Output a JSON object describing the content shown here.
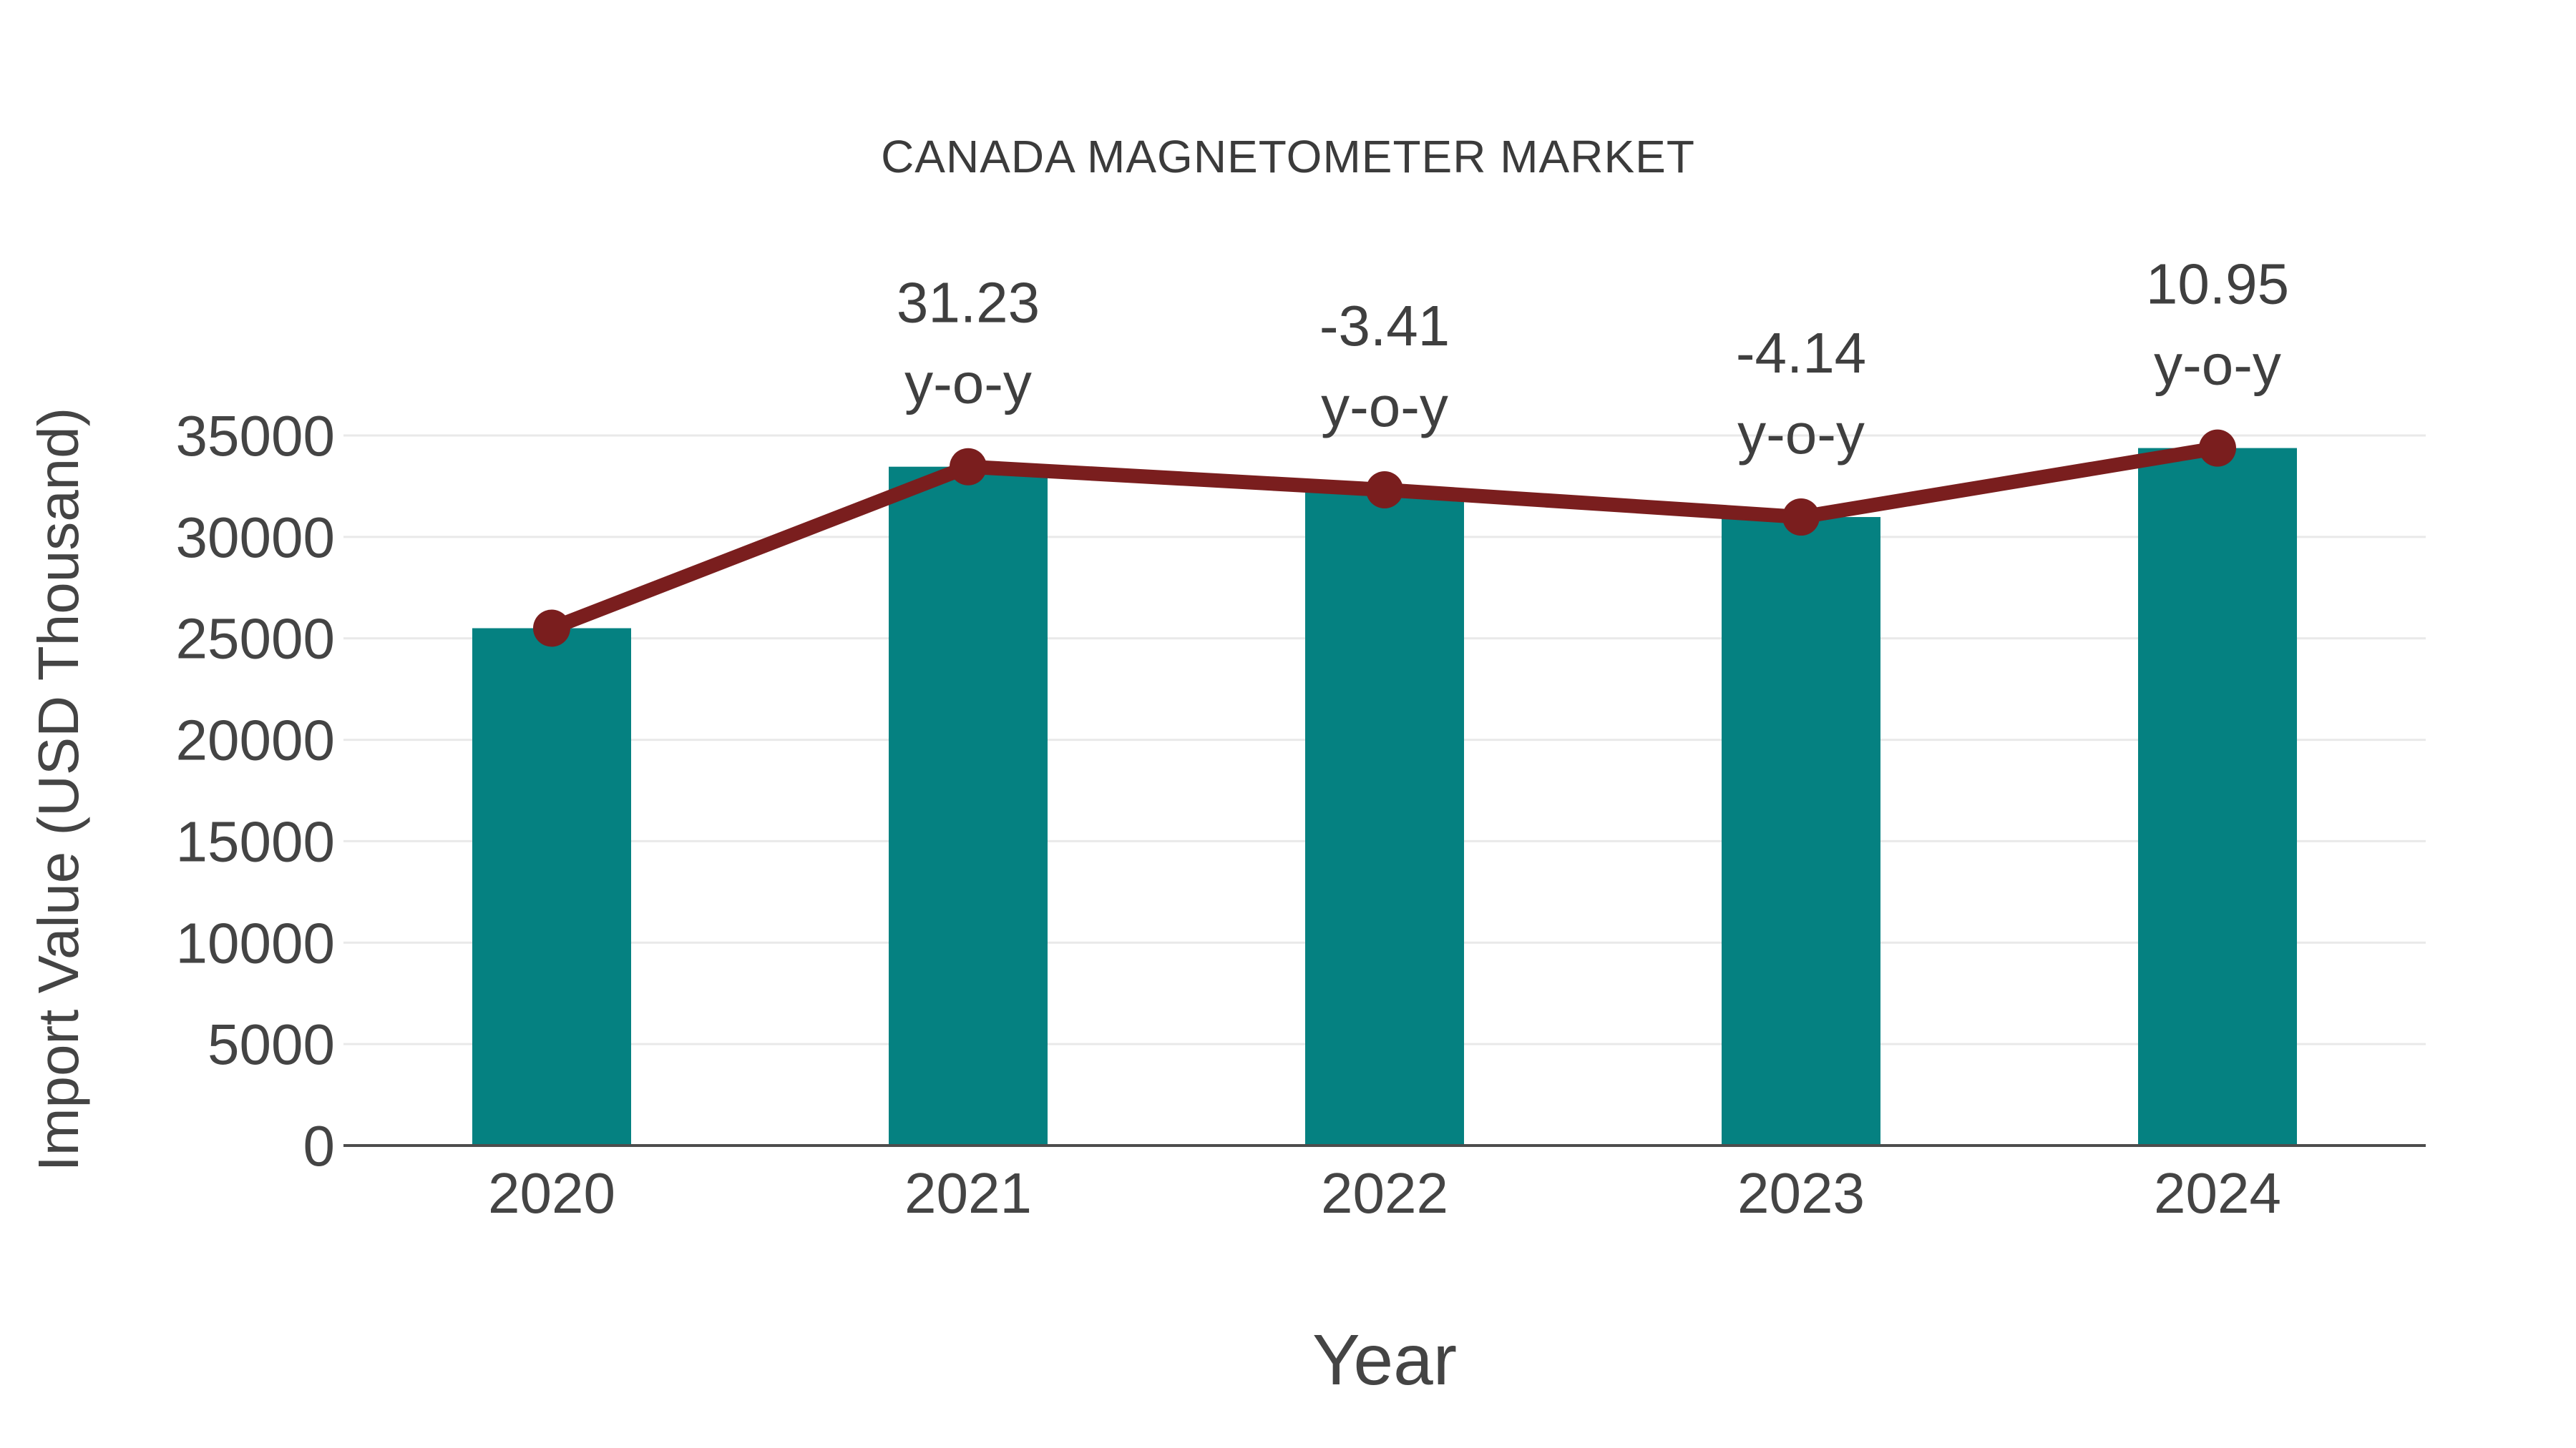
{
  "chart_data": {
    "type": "bar",
    "title": "CANADA MAGNETOMETER MARKET",
    "xlabel": "Year",
    "ylabel": "Import Value (USD Thousand)",
    "categories": [
      "2020",
      "2021",
      "2022",
      "2023",
      "2024"
    ],
    "series": [
      {
        "role": "bar",
        "values": [
          25500,
          33460,
          32320,
          30980,
          34380
        ]
      },
      {
        "role": "line",
        "values": [
          25500,
          33460,
          32320,
          30980,
          34380
        ]
      }
    ],
    "annotations": [
      {
        "category": "2021",
        "value": "31.23",
        "label": "y-o-y"
      },
      {
        "category": "2022",
        "value": "-3.41",
        "label": "y-o-y"
      },
      {
        "category": "2023",
        "value": "-4.14",
        "label": "y-o-y"
      },
      {
        "category": "2024",
        "value": "10.95",
        "label": "y-o-y"
      }
    ],
    "ylim": [
      0,
      35000
    ],
    "yticks": [
      0,
      5000,
      10000,
      15000,
      20000,
      25000,
      30000,
      35000
    ],
    "grid": true,
    "legend": "none",
    "colors": {
      "bar": "#058181",
      "line": "#7a1e1e",
      "grid": "#e9e9e9",
      "axis": "#4d4d4d",
      "tick_text": "#444444",
      "annotation_text": "#3f3f3f"
    }
  }
}
